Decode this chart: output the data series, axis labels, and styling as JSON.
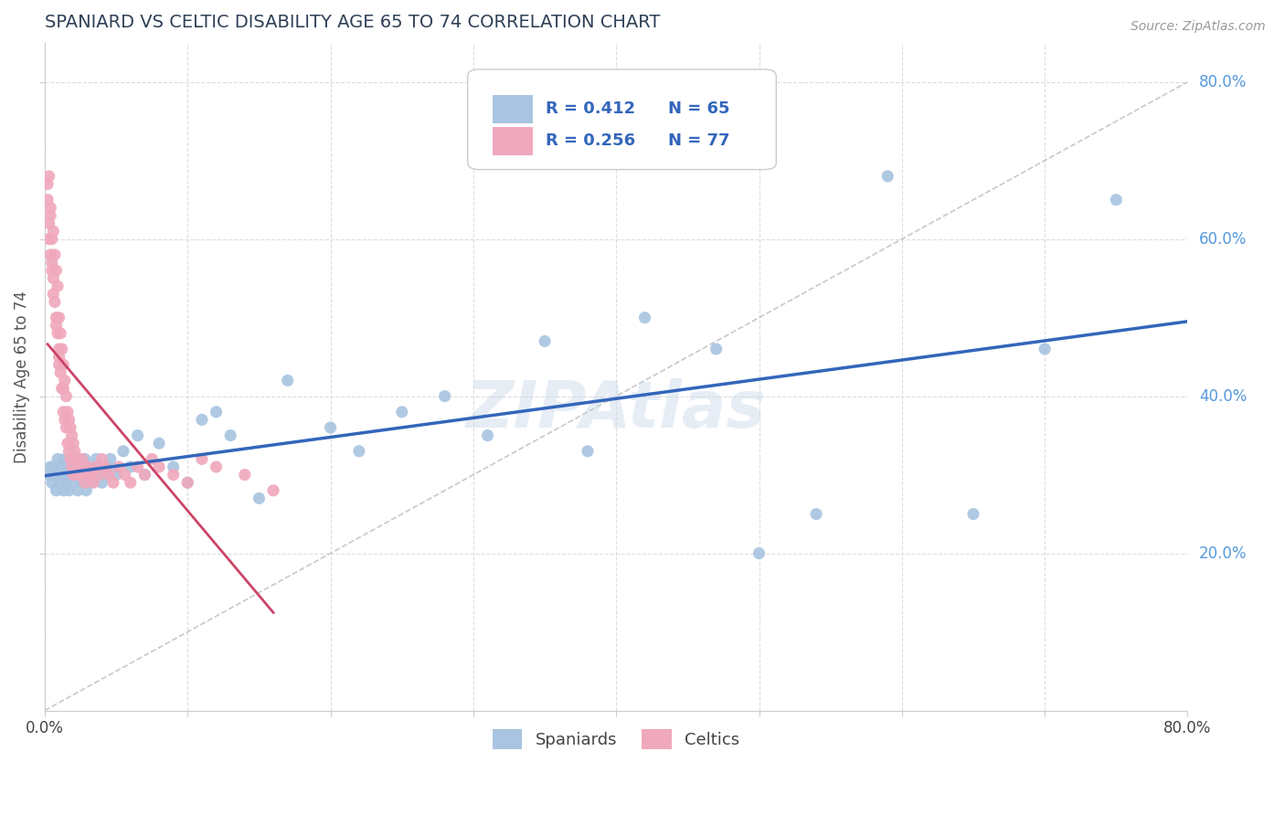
{
  "title": "SPANIARD VS CELTIC DISABILITY AGE 65 TO 74 CORRELATION CHART",
  "source_text": "Source: ZipAtlas.com",
  "ylabel": "Disability Age 65 to 74",
  "xlim": [
    0.0,
    0.8
  ],
  "ylim": [
    0.0,
    0.85
  ],
  "xticks": [
    0.0,
    0.1,
    0.2,
    0.3,
    0.4,
    0.5,
    0.6,
    0.7,
    0.8
  ],
  "yticks": [
    0.2,
    0.4,
    0.6,
    0.8
  ],
  "xtick_labels": [
    "0.0%",
    "",
    "",
    "",
    "",
    "",
    "",
    "",
    "80.0%"
  ],
  "ytick_labels": [
    "20.0%",
    "40.0%",
    "60.0%",
    "80.0%"
  ],
  "spaniard_color": "#a8c4e0",
  "celtic_color": "#f0a8bc",
  "spaniard_line_color": "#3366bb",
  "celtic_line_color": "#cc4466",
  "diag_line_color": "#cccccc",
  "R_spaniard": 0.412,
  "N_spaniard": 65,
  "R_celtic": 0.256,
  "N_celtic": 77,
  "watermark": "ZIPAtlas",
  "background_color": "#ffffff",
  "grid_color": "#dddddd",
  "title_color": "#2e4057",
  "axis_label_color": "#5599dd",
  "legend_label_spaniard": "Spaniards",
  "legend_label_celtic": "Celtics",
  "spaniard_x": [
    0.003,
    0.004,
    0.005,
    0.006,
    0.007,
    0.008,
    0.009,
    0.01,
    0.011,
    0.012,
    0.013,
    0.014,
    0.015,
    0.015,
    0.016,
    0.017,
    0.018,
    0.019,
    0.02,
    0.021,
    0.022,
    0.023,
    0.024,
    0.025,
    0.026,
    0.027,
    0.028,
    0.029,
    0.03,
    0.032,
    0.034,
    0.036,
    0.038,
    0.04,
    0.042,
    0.044,
    0.046,
    0.05,
    0.055,
    0.06,
    0.065,
    0.07,
    0.08,
    0.09,
    0.1,
    0.11,
    0.12,
    0.13,
    0.15,
    0.17,
    0.2,
    0.22,
    0.25,
    0.28,
    0.31,
    0.35,
    0.38,
    0.42,
    0.47,
    0.5,
    0.54,
    0.59,
    0.65,
    0.7,
    0.75
  ],
  "spaniard_y": [
    0.3,
    0.31,
    0.29,
    0.3,
    0.31,
    0.28,
    0.32,
    0.29,
    0.31,
    0.3,
    0.28,
    0.32,
    0.29,
    0.3,
    0.31,
    0.28,
    0.31,
    0.29,
    0.3,
    0.31,
    0.32,
    0.28,
    0.3,
    0.31,
    0.29,
    0.3,
    0.32,
    0.28,
    0.31,
    0.29,
    0.3,
    0.32,
    0.31,
    0.29,
    0.3,
    0.31,
    0.32,
    0.3,
    0.33,
    0.31,
    0.35,
    0.3,
    0.34,
    0.31,
    0.29,
    0.37,
    0.38,
    0.35,
    0.27,
    0.42,
    0.36,
    0.33,
    0.38,
    0.4,
    0.35,
    0.47,
    0.33,
    0.5,
    0.46,
    0.2,
    0.25,
    0.68,
    0.25,
    0.46,
    0.65
  ],
  "celtic_x": [
    0.002,
    0.003,
    0.003,
    0.004,
    0.004,
    0.005,
    0.005,
    0.006,
    0.006,
    0.007,
    0.007,
    0.008,
    0.008,
    0.009,
    0.009,
    0.01,
    0.01,
    0.01,
    0.011,
    0.011,
    0.012,
    0.012,
    0.013,
    0.013,
    0.013,
    0.014,
    0.014,
    0.015,
    0.015,
    0.016,
    0.016,
    0.017,
    0.017,
    0.018,
    0.018,
    0.019,
    0.019,
    0.02,
    0.02,
    0.021,
    0.022,
    0.023,
    0.024,
    0.025,
    0.026,
    0.027,
    0.028,
    0.029,
    0.03,
    0.032,
    0.034,
    0.036,
    0.038,
    0.04,
    0.042,
    0.045,
    0.048,
    0.052,
    0.056,
    0.06,
    0.065,
    0.07,
    0.075,
    0.08,
    0.09,
    0.1,
    0.11,
    0.12,
    0.14,
    0.16,
    0.002,
    0.003,
    0.004,
    0.005,
    0.006,
    0.008,
    0.01
  ],
  "celtic_y": [
    0.65,
    0.62,
    0.6,
    0.63,
    0.58,
    0.6,
    0.56,
    0.61,
    0.55,
    0.58,
    0.52,
    0.56,
    0.5,
    0.54,
    0.48,
    0.5,
    0.46,
    0.44,
    0.48,
    0.43,
    0.46,
    0.41,
    0.44,
    0.38,
    0.41,
    0.42,
    0.37,
    0.4,
    0.36,
    0.38,
    0.34,
    0.37,
    0.33,
    0.36,
    0.32,
    0.35,
    0.31,
    0.34,
    0.3,
    0.33,
    0.32,
    0.3,
    0.31,
    0.3,
    0.32,
    0.31,
    0.29,
    0.3,
    0.31,
    0.3,
    0.29,
    0.31,
    0.3,
    0.32,
    0.31,
    0.3,
    0.29,
    0.31,
    0.3,
    0.29,
    0.31,
    0.3,
    0.32,
    0.31,
    0.3,
    0.29,
    0.32,
    0.31,
    0.3,
    0.28,
    0.67,
    0.68,
    0.64,
    0.57,
    0.53,
    0.49,
    0.45
  ]
}
